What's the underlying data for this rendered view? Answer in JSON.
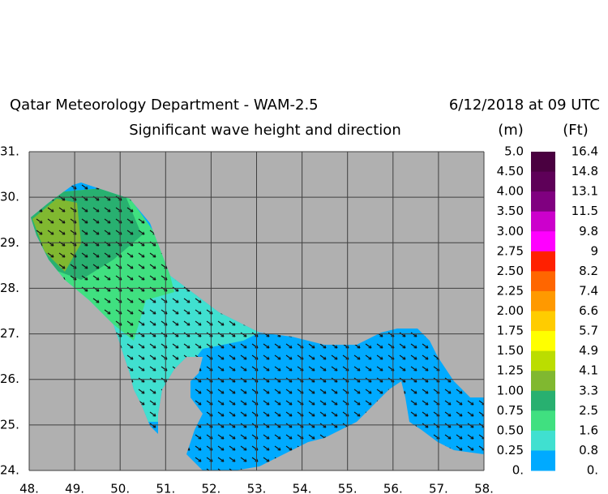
{
  "header": {
    "title": "Qatar Meteorology Department - WAM-2.5",
    "date": "6/12/2018 at 09 UTC",
    "subtitle": "Significant wave height and direction"
  },
  "map": {
    "xlim": [
      48,
      58
    ],
    "ylim": [
      24,
      31
    ],
    "xticks": [
      {
        "value": 48,
        "label": "48."
      },
      {
        "value": 49,
        "label": "49."
      },
      {
        "value": 50,
        "label": "50."
      },
      {
        "value": 51,
        "label": "51."
      },
      {
        "value": 52,
        "label": "52."
      },
      {
        "value": 53,
        "label": "53."
      },
      {
        "value": 54,
        "label": "54."
      },
      {
        "value": 55,
        "label": "55."
      },
      {
        "value": 56,
        "label": "56."
      },
      {
        "value": 57,
        "label": "57."
      },
      {
        "value": 58,
        "label": "58."
      }
    ],
    "yticks": [
      {
        "value": 24,
        "label": "24."
      },
      {
        "value": 25,
        "label": "25."
      },
      {
        "value": 26,
        "label": "26."
      },
      {
        "value": 27,
        "label": "27."
      },
      {
        "value": 28,
        "label": "28."
      },
      {
        "value": 29,
        "label": "29."
      },
      {
        "value": 30,
        "label": "30."
      },
      {
        "value": 31,
        "label": "31."
      }
    ]
  },
  "legend": {
    "unit_m": "(m)",
    "unit_ft": "(Ft)",
    "colors": [
      "#4a0040",
      "#5e0058",
      "#800080",
      "#cc00cc",
      "#ff00ff",
      "#ff2000",
      "#ff6600",
      "#ff9900",
      "#ffcc00",
      "#ffff00",
      "#bbdd00",
      "#80b830",
      "#28b070",
      "#40e080",
      "#40e0d0",
      "#00aaff"
    ],
    "m_labels": [
      {
        "value": 5,
        "label": "5.0"
      },
      {
        "value": 4.5,
        "label": "4.50"
      },
      {
        "value": 4,
        "label": "4.00"
      },
      {
        "value": 3.5,
        "label": "3.50"
      },
      {
        "value": 3,
        "label": "3.00"
      },
      2.75,
      {
        "value": 2.5,
        "label": "2.50"
      },
      2.25,
      {
        "value": 2,
        "label": "2.00"
      },
      1.75,
      {
        "value": 1.5,
        "label": "1.50"
      },
      1.25,
      {
        "value": 1,
        "label": "1.00"
      },
      0.75,
      {
        "value": 0.5,
        "label": "0.50"
      },
      0.25,
      {
        "value": 0,
        "label": "0."
      }
    ],
    "ft_labels": [
      16.4,
      14.8,
      13.1,
      11.5,
      9.8,
      9,
      8.2,
      7.4,
      6.6,
      5.7,
      4.9,
      4.1,
      3.3,
      2.5,
      1.6,
      0.8,
      {
        "value": 0,
        "label": "0."
      }
    ]
  }
}
